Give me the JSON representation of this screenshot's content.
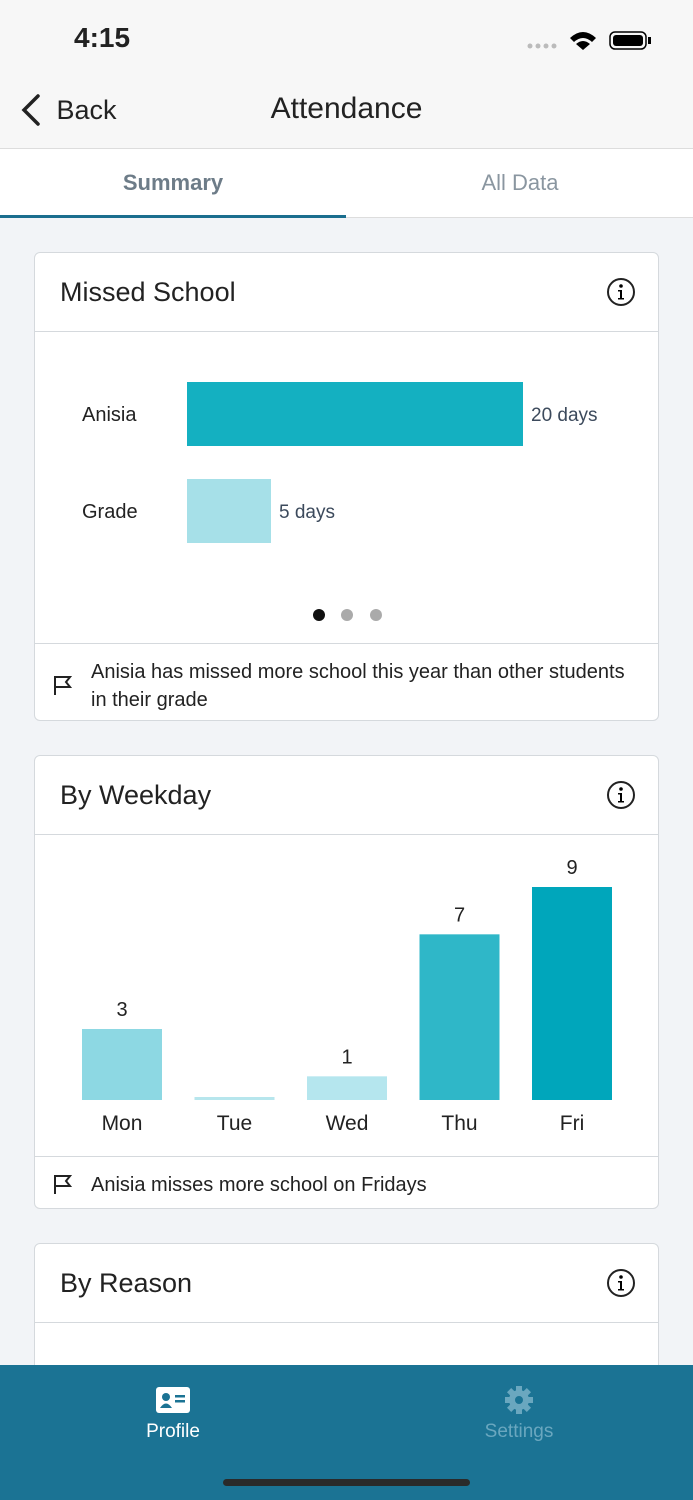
{
  "status_bar": {
    "time": "4:15"
  },
  "nav": {
    "back": "Back",
    "title": "Attendance"
  },
  "tabs": [
    {
      "label": "Summary",
      "active": true
    },
    {
      "label": "All Data",
      "active": false
    }
  ],
  "cards": [
    {
      "title": "Missed School",
      "note": "Anisia has missed more school this year than other students in their grade"
    },
    {
      "title": "By Weekday",
      "note": "Anisia misses more school on Fridays"
    },
    {
      "title": "By Reason"
    }
  ],
  "chart_data": [
    {
      "type": "hbar",
      "categories": [
        "Anisia",
        "Grade"
      ],
      "values": [
        20,
        5
      ],
      "value_labels": [
        "20 days",
        "5 days"
      ],
      "colors": [
        "#14b0c1",
        "#a6e0e8"
      ],
      "xlim": [
        0,
        20
      ]
    },
    {
      "type": "bar",
      "categories": [
        "Mon",
        "Tue",
        "Wed",
        "Thu",
        "Fri"
      ],
      "values": [
        3,
        0,
        1,
        7,
        9
      ],
      "colors": [
        "#8dd8e3",
        "#b7e6ed",
        "#b5e6ee",
        "#2fb7c8",
        "#00a6bb"
      ],
      "ylim": [
        0,
        9
      ]
    }
  ],
  "bottom_tabs": [
    {
      "label": "Profile",
      "active": true
    },
    {
      "label": "Settings",
      "active": false
    }
  ]
}
